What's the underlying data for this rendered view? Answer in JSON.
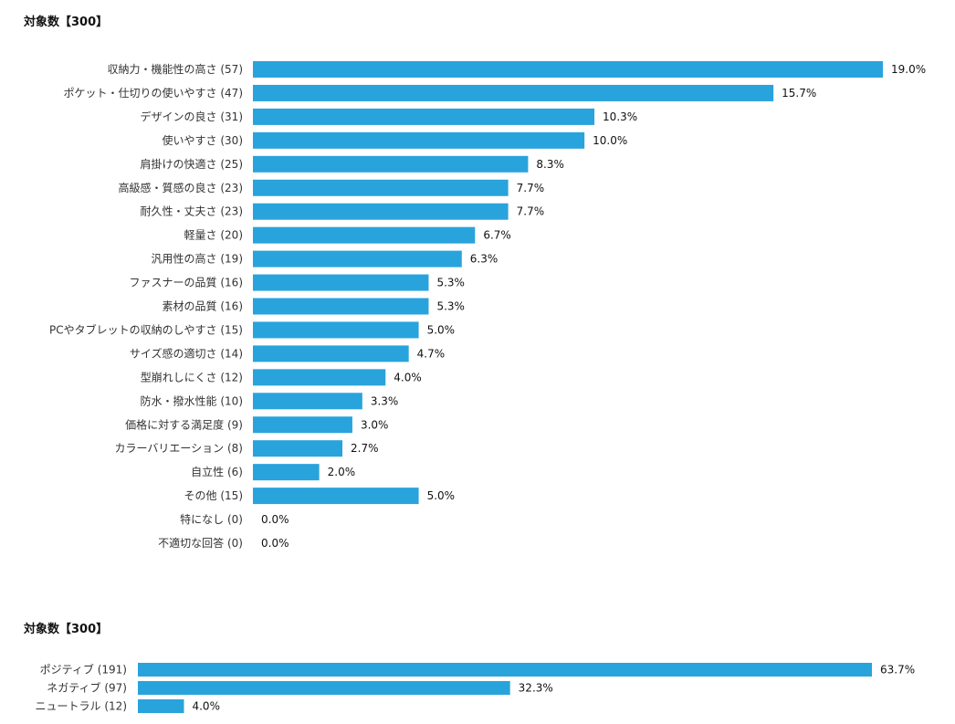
{
  "chart_data": [
    {
      "type": "bar",
      "orientation": "horizontal",
      "title": "対象数【300】",
      "bar_color": "#29a3dc",
      "categories": [
        "収納力・機能性の高さ (57)",
        "ポケット・仕切りの使いやすさ (47)",
        "デザインの良さ (31)",
        "使いやすさ (30)",
        "肩掛けの快適さ (25)",
        "高級感・質感の良さ (23)",
        "耐久性・丈夫さ (23)",
        "軽量さ (20)",
        "汎用性の高さ (19)",
        "ファスナーの品質 (16)",
        "素材の品質 (16)",
        "PCやタブレットの収納のしやすさ (15)",
        "サイズ感の適切さ (14)",
        "型崩れしにくさ (12)",
        "防水・撥水性能 (10)",
        "価格に対する満足度 (9)",
        "カラーバリエーション (8)",
        "自立性 (6)",
        "その他 (15)",
        "特になし (0)",
        "不適切な回答 (0)"
      ],
      "values": [
        19.0,
        15.7,
        10.3,
        10.0,
        8.3,
        7.7,
        7.7,
        6.7,
        6.3,
        5.3,
        5.3,
        5.0,
        4.7,
        4.0,
        3.3,
        3.0,
        2.7,
        2.0,
        5.0,
        0.0,
        0.0
      ],
      "value_labels": [
        "19.0%",
        "15.7%",
        "10.3%",
        "10.0%",
        "8.3%",
        "7.7%",
        "7.7%",
        "6.7%",
        "6.3%",
        "5.3%",
        "5.3%",
        "5.0%",
        "4.7%",
        "4.0%",
        "3.3%",
        "3.0%",
        "2.7%",
        "2.0%",
        "5.0%",
        "0.0%",
        "0.0%"
      ],
      "grid": false,
      "legend": "none"
    },
    {
      "type": "bar",
      "orientation": "horizontal",
      "title": "対象数【300】",
      "bar_color": "#29a3dc",
      "categories": [
        "ポジティブ (191)",
        "ネガティブ (97)",
        "ニュートラル (12)"
      ],
      "values": [
        63.7,
        32.3,
        4.0
      ],
      "value_labels": [
        "63.7%",
        "32.3%",
        "4.0%"
      ],
      "grid": false,
      "legend": "none"
    }
  ]
}
